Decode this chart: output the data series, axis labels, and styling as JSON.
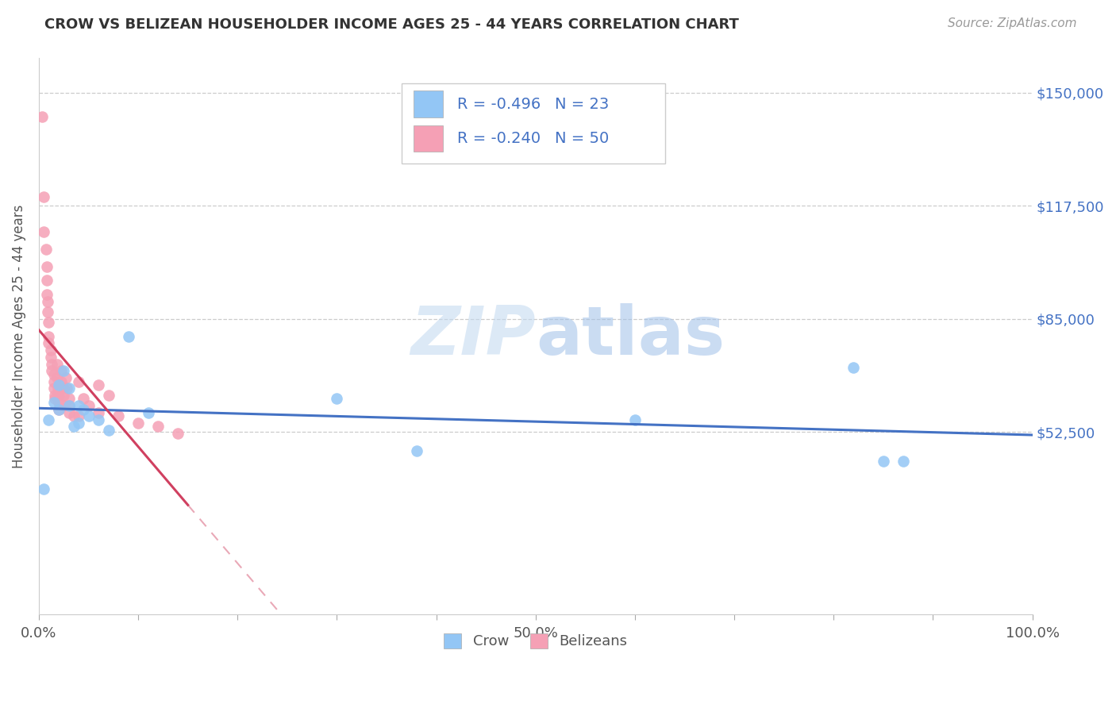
{
  "title": "CROW VS BELIZEAN HOUSEHOLDER INCOME AGES 25 - 44 YEARS CORRELATION CHART",
  "source": "Source: ZipAtlas.com",
  "ylabel": "Householder Income Ages 25 - 44 years",
  "xlim": [
    0,
    1.0
  ],
  "ylim": [
    0,
    160000
  ],
  "xticks": [
    0.0,
    0.1,
    0.2,
    0.3,
    0.4,
    0.5,
    0.6,
    0.7,
    0.8,
    0.9,
    1.0
  ],
  "xticklabels": [
    "0.0%",
    "",
    "",
    "",
    "",
    "50.0%",
    "",
    "",
    "",
    "",
    "100.0%"
  ],
  "yticks": [
    0,
    52500,
    85000,
    117500,
    150000
  ],
  "yticklabels": [
    "",
    "$52,500",
    "$85,000",
    "$117,500",
    "$150,000"
  ],
  "crow_color": "#93c6f5",
  "belizean_color": "#f5a0b5",
  "crow_line_color": "#4472c4",
  "belizean_line_color": "#d04060",
  "background_color": "#ffffff",
  "watermark_zip": "ZIP",
  "watermark_atlas": "atlas",
  "legend_r_crow": "R = -0.496",
  "legend_n_crow": "N = 23",
  "legend_r_bel": "R = -0.240",
  "legend_n_bel": "N = 50",
  "legend_label_crow": "Crow",
  "legend_label_bel": "Belizeans",
  "crow_x": [
    0.005,
    0.01,
    0.015,
    0.02,
    0.02,
    0.025,
    0.03,
    0.03,
    0.035,
    0.04,
    0.04,
    0.045,
    0.05,
    0.06,
    0.07,
    0.09,
    0.11,
    0.3,
    0.38,
    0.6,
    0.82,
    0.85,
    0.87
  ],
  "crow_y": [
    36000,
    56000,
    61000,
    59000,
    66000,
    70000,
    60000,
    65000,
    54000,
    60000,
    55000,
    59000,
    57000,
    56000,
    53000,
    80000,
    58000,
    62000,
    47000,
    56000,
    71000,
    44000,
    44000
  ],
  "belizean_x": [
    0.003,
    0.005,
    0.005,
    0.007,
    0.008,
    0.008,
    0.008,
    0.009,
    0.009,
    0.01,
    0.01,
    0.01,
    0.012,
    0.012,
    0.013,
    0.013,
    0.015,
    0.015,
    0.015,
    0.016,
    0.016,
    0.018,
    0.018,
    0.019,
    0.019,
    0.02,
    0.02,
    0.02,
    0.022,
    0.022,
    0.025,
    0.025,
    0.025,
    0.027,
    0.028,
    0.03,
    0.03,
    0.03,
    0.035,
    0.04,
    0.04,
    0.045,
    0.05,
    0.06,
    0.06,
    0.07,
    0.08,
    0.1,
    0.12,
    0.14
  ],
  "belizean_y": [
    143000,
    120000,
    110000,
    105000,
    100000,
    96000,
    92000,
    90000,
    87000,
    84000,
    80000,
    78000,
    76000,
    74000,
    72000,
    70000,
    69000,
    67000,
    65000,
    63000,
    62000,
    72000,
    68000,
    65000,
    63000,
    63000,
    61000,
    59000,
    70000,
    67000,
    65000,
    63000,
    60000,
    68000,
    65000,
    60000,
    62000,
    58000,
    57000,
    67000,
    57000,
    62000,
    60000,
    66000,
    58000,
    63000,
    57000,
    55000,
    54000,
    52000
  ]
}
